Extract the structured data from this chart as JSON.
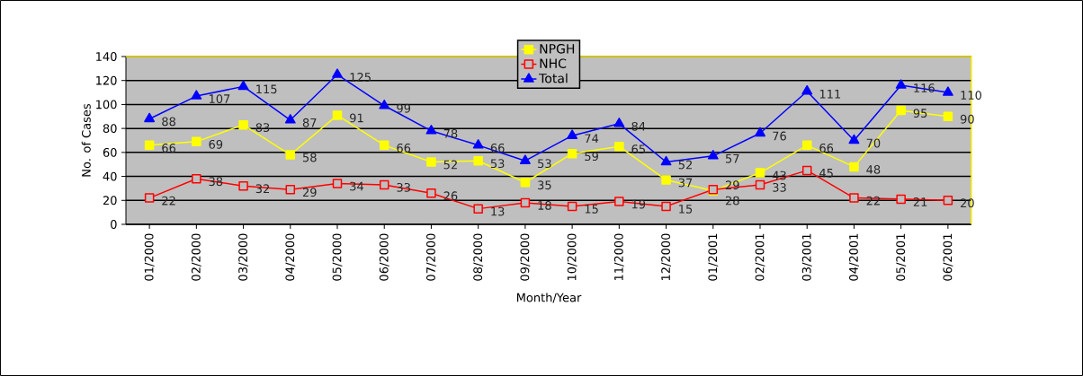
{
  "chart_data": {
    "type": "line",
    "xlabel": "Month/Year",
    "ylabel": "No. of Cases",
    "categories": [
      "01/2000",
      "02/2000",
      "03/2000",
      "04/2000",
      "05/2000",
      "06/2000",
      "07/2000",
      "08/2000",
      "09/2000",
      "10/2000",
      "11/2000",
      "12/2000",
      "01/2001",
      "02/2001",
      "03/2001",
      "04/2001",
      "05/2001",
      "06/2001"
    ],
    "series": [
      {
        "name": "NPGH",
        "color": "#ffff00",
        "marker": "square",
        "values": [
          66,
          69,
          83,
          58,
          91,
          66,
          52,
          53,
          35,
          59,
          65,
          37,
          28,
          43,
          66,
          48,
          95,
          90
        ]
      },
      {
        "name": "NHC",
        "color": "#ff0000",
        "marker": "square_open",
        "values": [
          22,
          38,
          32,
          29,
          34,
          33,
          26,
          13,
          18,
          15,
          19,
          15,
          29,
          33,
          45,
          22,
          21,
          20
        ]
      },
      {
        "name": "Total",
        "color": "#0000ff",
        "marker": "triangle",
        "values": [
          88,
          107,
          115,
          87,
          125,
          99,
          78,
          66,
          53,
          74,
          84,
          52,
          57,
          76,
          111,
          70,
          116,
          110
        ]
      }
    ],
    "ylim": [
      0,
      140
    ],
    "yticks": [
      0,
      20,
      40,
      60,
      80,
      100,
      120,
      140
    ],
    "grid": "y",
    "legend": "top",
    "data_labels": true,
    "line_style": "solid"
  }
}
